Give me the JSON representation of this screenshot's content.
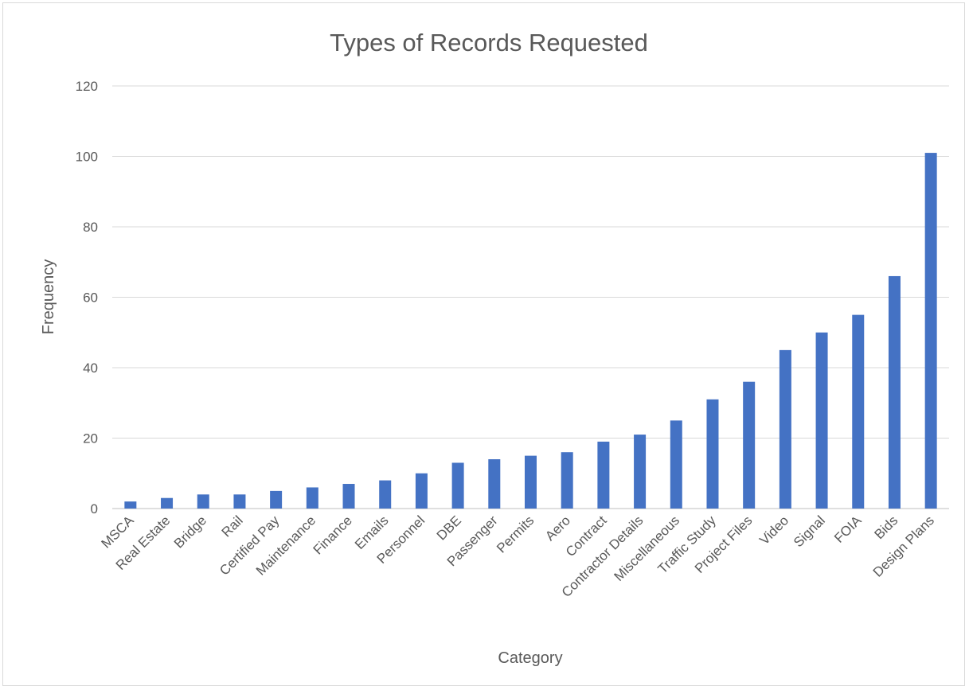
{
  "chart_data": {
    "type": "bar",
    "title": "Types of Records Requested",
    "xlabel": "Category",
    "ylabel": "Frequency",
    "ylim": [
      0,
      120
    ],
    "yticks": [
      0,
      20,
      40,
      60,
      80,
      100,
      120
    ],
    "grid": true,
    "legend": "none",
    "bar_color": "#4472c4",
    "categories": [
      "MSCA",
      "Real Estate",
      "Bridge",
      "Rail",
      "Certified Pay",
      "Maintenance",
      "Finance",
      "Emails",
      "Personnel",
      "DBE",
      "Passenger",
      "Permits",
      "Aero",
      "Contract",
      "Contractor Details",
      "Miscellaneous",
      "Traffic Study",
      "Project Files",
      "Video",
      "Signal",
      "FOIA",
      "Bids",
      "Design Plans"
    ],
    "values": [
      2,
      3,
      4,
      4,
      5,
      6,
      7,
      8,
      10,
      13,
      14,
      15,
      16,
      19,
      21,
      25,
      31,
      36,
      45,
      50,
      55,
      66,
      101
    ]
  }
}
